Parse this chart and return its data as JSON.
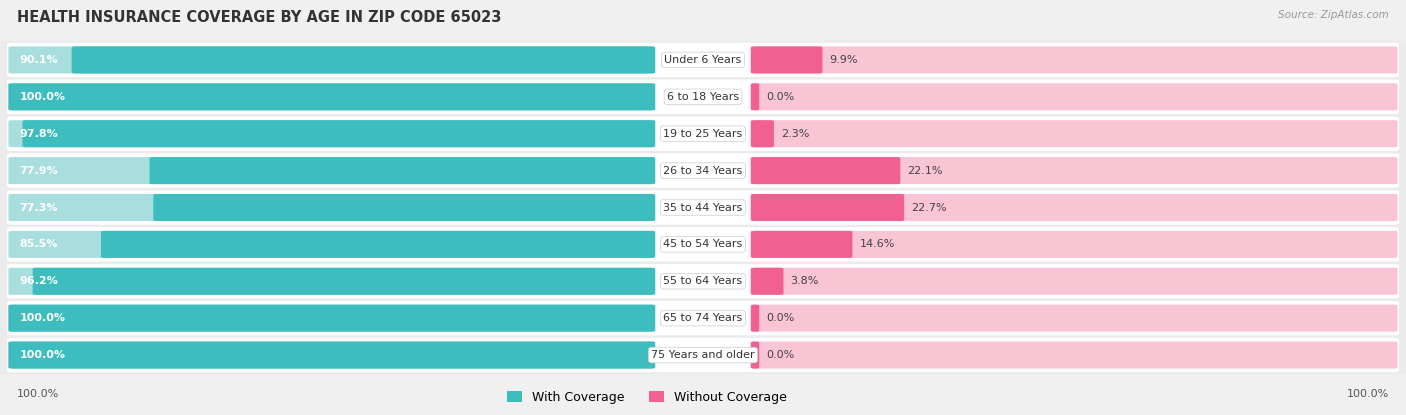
{
  "title": "HEALTH INSURANCE COVERAGE BY AGE IN ZIP CODE 65023",
  "source": "Source: ZipAtlas.com",
  "categories": [
    "Under 6 Years",
    "6 to 18 Years",
    "19 to 25 Years",
    "26 to 34 Years",
    "35 to 44 Years",
    "45 to 54 Years",
    "55 to 64 Years",
    "65 to 74 Years",
    "75 Years and older"
  ],
  "with_coverage": [
    90.1,
    100.0,
    97.8,
    77.9,
    77.3,
    85.5,
    96.2,
    100.0,
    100.0
  ],
  "without_coverage": [
    9.9,
    0.0,
    2.3,
    22.1,
    22.7,
    14.6,
    3.8,
    0.0,
    0.0
  ],
  "color_with": "#3DBDBD",
  "color_without": "#F06090",
  "color_with_light": "#A8DEDE",
  "color_without_light": "#F9C4D4",
  "color_row_bg": "#ebebeb",
  "color_white": "#ffffff",
  "bg_color": "#f0f0f0",
  "title_fontsize": 10.5,
  "label_fontsize": 8.0,
  "value_fontsize": 8.0,
  "tick_fontsize": 8.0,
  "legend_fontsize": 9.0,
  "figsize": [
    14.06,
    4.15
  ],
  "dpi": 100
}
